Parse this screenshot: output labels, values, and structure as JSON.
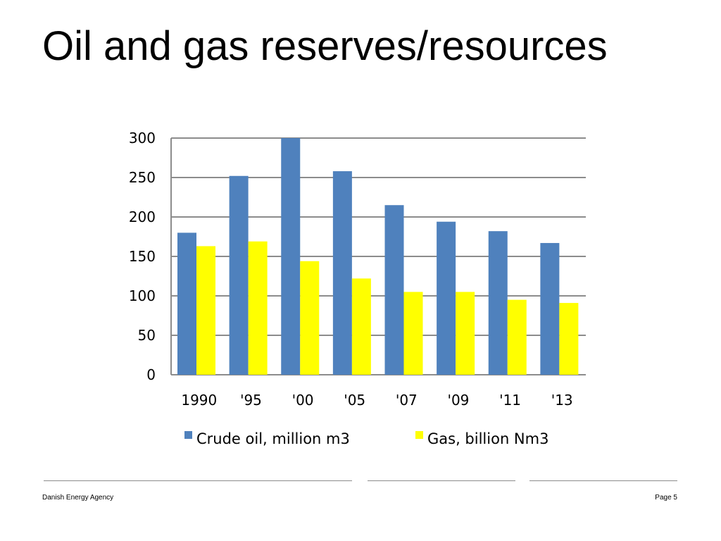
{
  "slide": {
    "title": "Oil and gas reserves/resources"
  },
  "chart_data": {
    "type": "bar",
    "categories": [
      "1990",
      "'95",
      "'00",
      "'05",
      "'07",
      "'09",
      "'11",
      "'13"
    ],
    "series": [
      {
        "name": "Crude oil, million m3",
        "color": "#4f81bd",
        "values": [
          180,
          252,
          300,
          258,
          215,
          194,
          182,
          167
        ]
      },
      {
        "name": "Gas, billion Nm3",
        "color": "#ffff00",
        "values": [
          163,
          169,
          144,
          122,
          105,
          105,
          95,
          91
        ]
      }
    ],
    "ylim": [
      0,
      300
    ],
    "yticks": [
      "0",
      "50",
      "100",
      "150",
      "200",
      "250",
      "300"
    ],
    "grid": true,
    "legend_position": "bottom"
  },
  "footer": {
    "left": "Danish Energy Agency",
    "right": "Page 5"
  }
}
